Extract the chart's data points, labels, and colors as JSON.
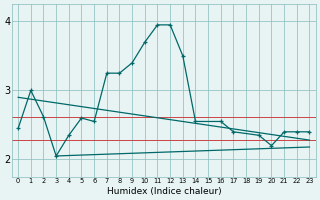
{
  "background_color": "#e8f4f4",
  "grid_color": "#88bbbb",
  "line_color": "#006868",
  "red_line_color": "#cc4444",
  "x_label": "Humidex (Indice chaleur)",
  "x_ticks": [
    0,
    1,
    2,
    3,
    4,
    5,
    6,
    7,
    8,
    9,
    10,
    11,
    12,
    13,
    14,
    15,
    16,
    17,
    18,
    19,
    20,
    21,
    22,
    23
  ],
  "ylim": [
    1.75,
    4.25
  ],
  "yticks": [
    2,
    3,
    4
  ],
  "figsize": [
    3.2,
    2.0
  ],
  "dpi": 100,
  "line1": {
    "x": [
      0,
      1,
      2,
      3,
      4,
      5,
      6,
      7,
      8,
      9,
      10,
      11,
      12,
      13,
      14,
      16,
      17,
      19,
      20,
      21,
      22,
      23
    ],
    "y": [
      2.45,
      3.0,
      2.62,
      2.05,
      2.35,
      2.6,
      2.55,
      3.25,
      3.25,
      3.4,
      3.7,
      3.95,
      3.95,
      3.5,
      2.55,
      2.55,
      2.4,
      2.35,
      2.2,
      2.4,
      2.4,
      2.4
    ]
  },
  "line_regression": {
    "x": [
      0,
      23
    ],
    "y": [
      2.9,
      2.28
    ]
  },
  "line_bottom": {
    "x": [
      3,
      23
    ],
    "y": [
      2.05,
      2.18
    ]
  },
  "red_line1": {
    "x": [
      0,
      23
    ],
    "y": [
      2.62,
      2.62
    ]
  },
  "red_line2": {
    "x": [
      0,
      23
    ],
    "y": [
      2.28,
      2.28
    ]
  }
}
